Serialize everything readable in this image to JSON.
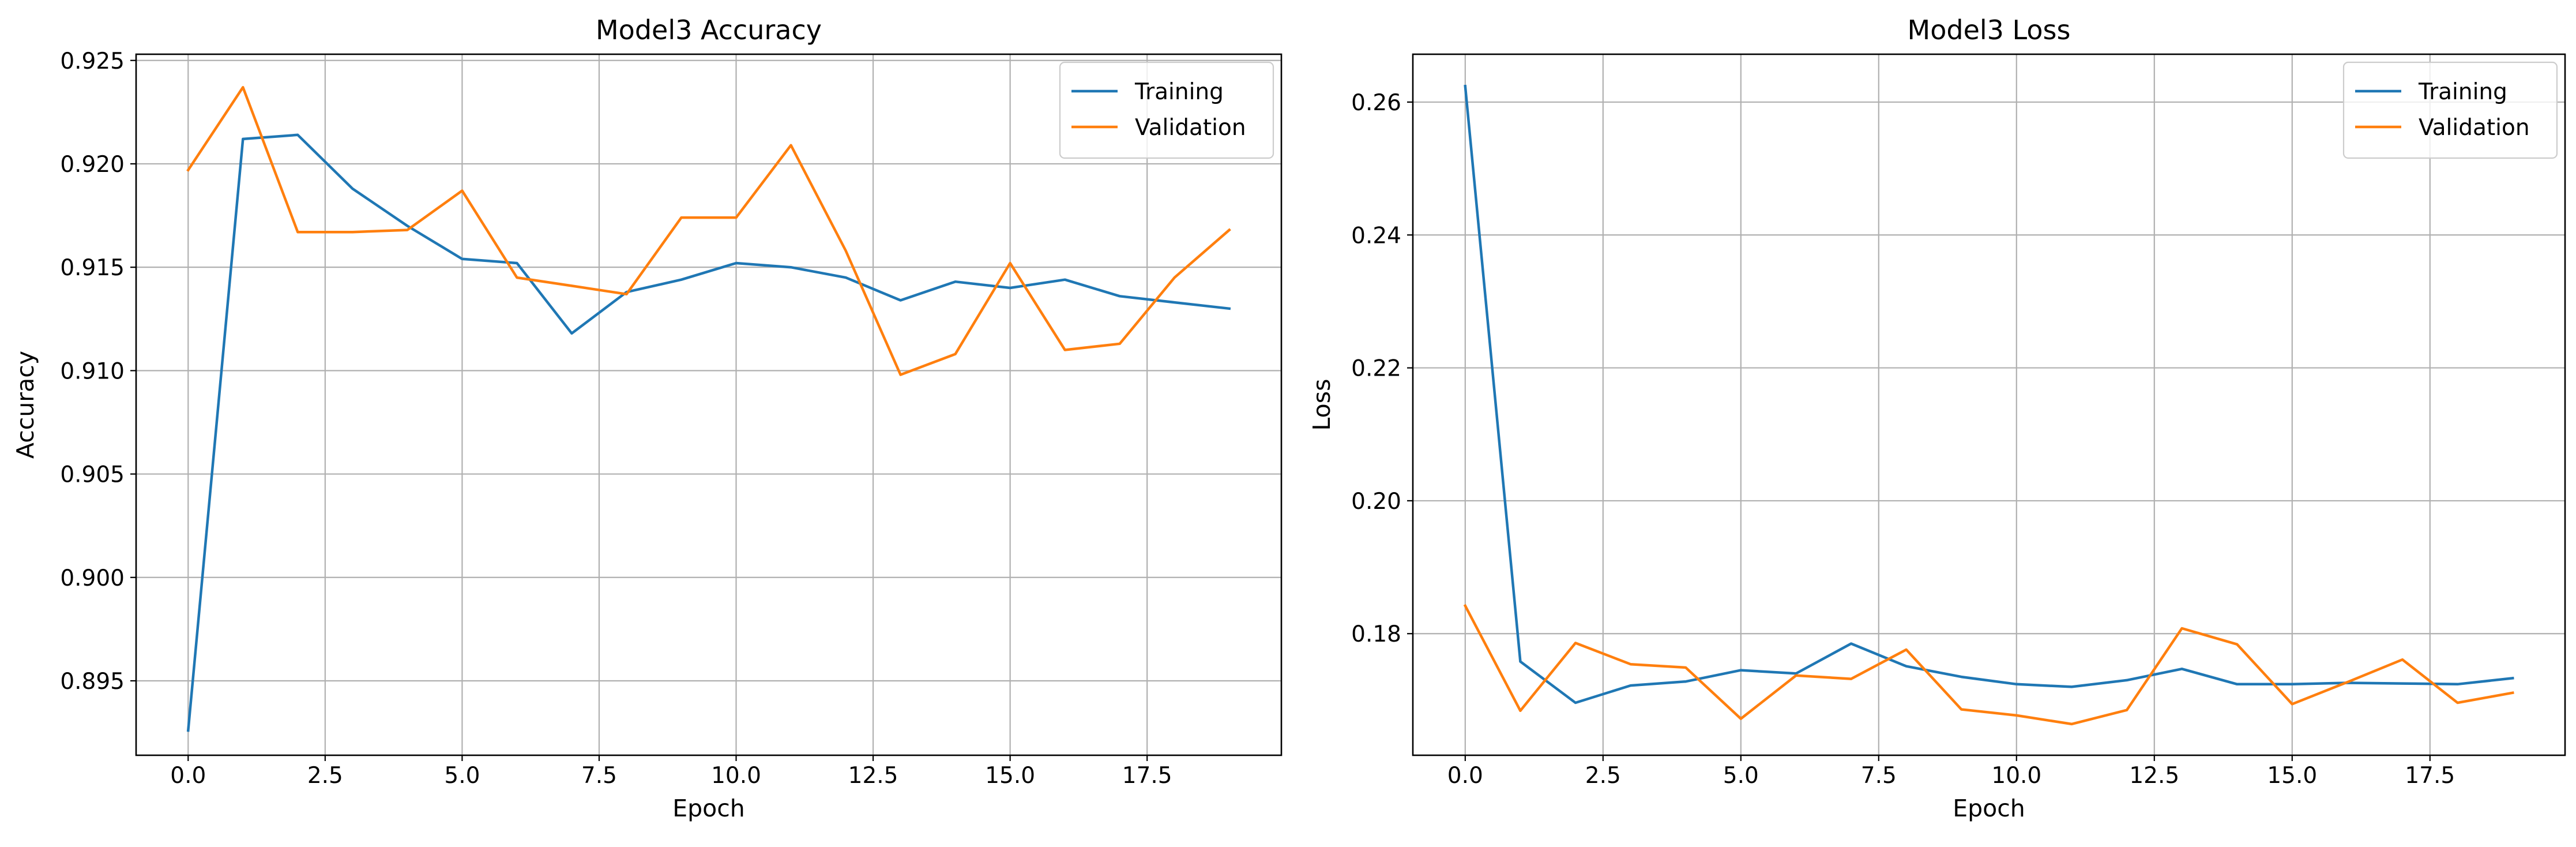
{
  "colors": {
    "training": "#1f77b4",
    "validation": "#ff7f0e",
    "grid": "#b0b0b0",
    "frame": "#000000"
  },
  "chart_data": [
    {
      "type": "line",
      "title": "Model3 Accuracy",
      "xlabel": "Epoch",
      "ylabel": "Accuracy",
      "xlim": [
        -0.95,
        19.95
      ],
      "ylim": [
        0.8914,
        0.9253
      ],
      "xticks": [
        0,
        2.5,
        5,
        7.5,
        10,
        12.5,
        15,
        17.5
      ],
      "xtick_labels": [
        "0.0",
        "2.5",
        "5.0",
        "7.5",
        "10.0",
        "12.5",
        "15.0",
        "17.5"
      ],
      "yticks": [
        0.895,
        0.9,
        0.905,
        0.91,
        0.915,
        0.92,
        0.925
      ],
      "ytick_labels": [
        "0.895",
        "0.900",
        "0.905",
        "0.910",
        "0.915",
        "0.920",
        "0.925"
      ],
      "grid": true,
      "legend": "top-right",
      "x": [
        0,
        1,
        2,
        3,
        4,
        5,
        6,
        7,
        8,
        9,
        10,
        11,
        12,
        13,
        14,
        15,
        16,
        17,
        18,
        19
      ],
      "series": [
        {
          "name": "Training",
          "color": "#1f77b4",
          "values": [
            0.8926,
            0.9212,
            0.9214,
            0.9188,
            0.917,
            0.9154,
            0.9152,
            0.9118,
            0.9138,
            0.9144,
            0.9152,
            0.915,
            0.9145,
            0.9134,
            0.9143,
            0.914,
            0.9144,
            0.9136,
            0.9133,
            0.913
          ]
        },
        {
          "name": "Validation",
          "color": "#ff7f0e",
          "values": [
            0.9197,
            0.9237,
            0.9167,
            0.9167,
            0.9168,
            0.9187,
            0.9145,
            0.9141,
            0.9137,
            0.9174,
            0.9174,
            0.9209,
            0.9158,
            0.9098,
            0.9108,
            0.9152,
            0.911,
            0.9113,
            0.9145,
            0.9168
          ]
        }
      ]
    },
    {
      "type": "line",
      "title": "Model3 Loss",
      "xlabel": "Epoch",
      "ylabel": "Loss",
      "xlim": [
        -0.95,
        19.95
      ],
      "ylim": [
        0.1617,
        0.2672
      ],
      "xticks": [
        0,
        2.5,
        5,
        7.5,
        10,
        12.5,
        15,
        17.5
      ],
      "xtick_labels": [
        "0.0",
        "2.5",
        "5.0",
        "7.5",
        "10.0",
        "12.5",
        "15.0",
        "17.5"
      ],
      "yticks": [
        0.18,
        0.2,
        0.22,
        0.24,
        0.26
      ],
      "ytick_labels": [
        "0.18",
        "0.20",
        "0.22",
        "0.24",
        "0.26"
      ],
      "grid": true,
      "legend": "top-right",
      "x": [
        0,
        1,
        2,
        3,
        4,
        5,
        6,
        7,
        8,
        9,
        10,
        11,
        12,
        13,
        14,
        15,
        16,
        17,
        18,
        19
      ],
      "series": [
        {
          "name": "Training",
          "color": "#1f77b4",
          "values": [
            0.2624,
            0.1758,
            0.1696,
            0.1722,
            0.1728,
            0.1745,
            0.174,
            0.1785,
            0.1751,
            0.1735,
            0.1724,
            0.172,
            0.173,
            0.1747,
            0.1724,
            0.1724,
            0.1726,
            0.1725,
            0.1724,
            0.1733
          ]
        },
        {
          "name": "Validation",
          "color": "#ff7f0e",
          "values": [
            0.1842,
            0.1684,
            0.1786,
            0.1754,
            0.1749,
            0.1672,
            0.1737,
            0.1732,
            0.1776,
            0.1686,
            0.1677,
            0.1664,
            0.1685,
            0.1808,
            0.1784,
            0.1694,
            0.1727,
            0.1761,
            0.1696,
            0.1711
          ]
        }
      ]
    }
  ]
}
